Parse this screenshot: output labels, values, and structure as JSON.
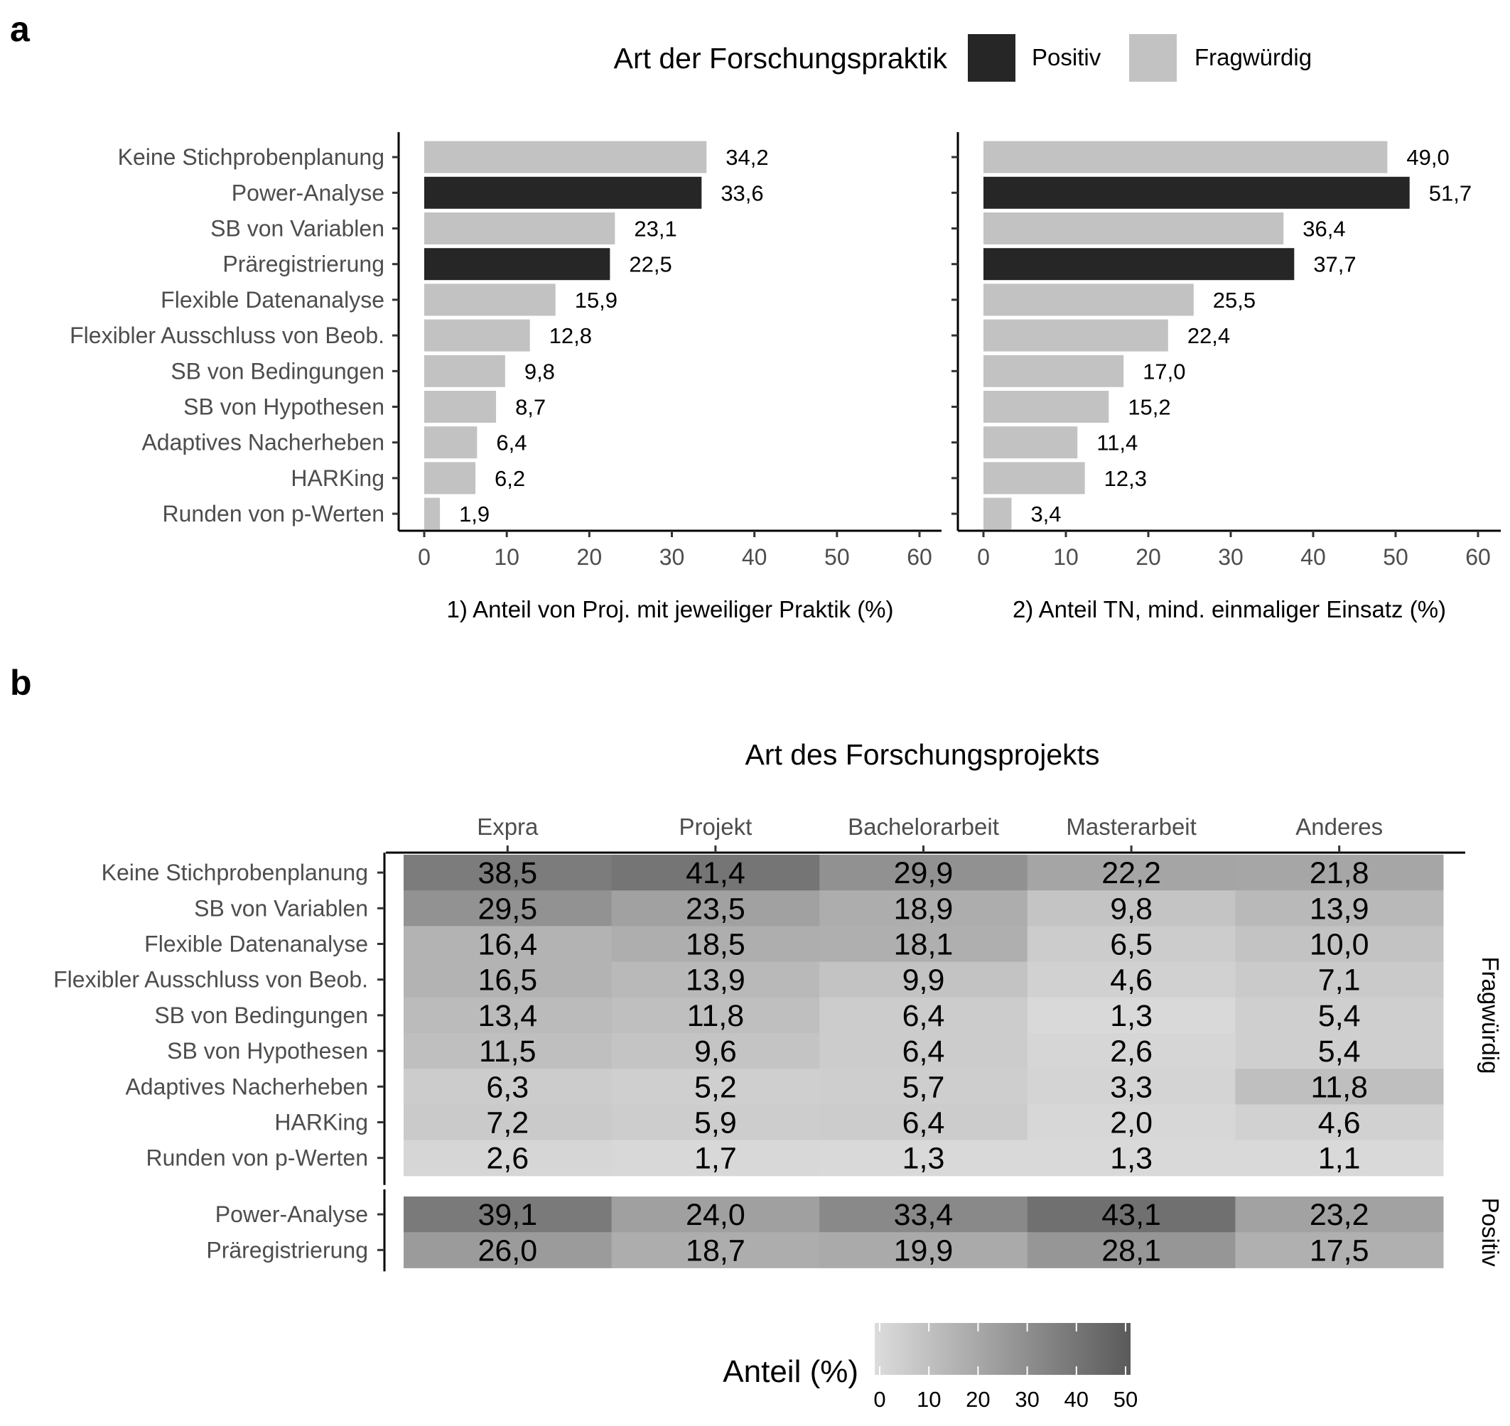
{
  "panel_labels": {
    "a": "a",
    "b": "b"
  },
  "legend": {
    "title": "Art der Forschungspraktik",
    "items": [
      {
        "label": "Positiv",
        "color": "#262626"
      },
      {
        "label": "Fragwürdig",
        "color": "#c2c2c2"
      }
    ]
  },
  "colors": {
    "positive": "#262626",
    "questionable": "#c2c2c2"
  },
  "chart_data": [
    {
      "type": "bar",
      "orientation": "horizontal",
      "categories": [
        "Keine Stichprobenplanung",
        "Power-Analyse",
        "SB von Variablen",
        "Präregistrierung",
        "Flexible Datenanalyse",
        "Flexibler Ausschluss von Beob.",
        "SB von Bedingungen",
        "SB von Hypothesen",
        "Adaptives Nacherheben",
        "HARKing",
        "Runden von p-Werten"
      ],
      "practice_type": [
        "Fragwürdig",
        "Positiv",
        "Fragwürdig",
        "Positiv",
        "Fragwürdig",
        "Fragwürdig",
        "Fragwürdig",
        "Fragwürdig",
        "Fragwürdig",
        "Fragwürdig",
        "Fragwürdig"
      ],
      "values": [
        34.2,
        33.6,
        23.1,
        22.5,
        15.9,
        12.8,
        9.8,
        8.7,
        6.4,
        6.2,
        1.9
      ],
      "value_labels": [
        "34,2",
        "33,6",
        "23,1",
        "22,5",
        "15,9",
        "12,8",
        "9,8",
        "8,7",
        "6,4",
        "6,2",
        "1,9"
      ],
      "xlabel": "1) Anteil von Proj. mit jeweiliger Praktik (%)",
      "xlim": [
        0,
        60
      ],
      "xticks": [
        0,
        10,
        20,
        30,
        40,
        50,
        60
      ]
    },
    {
      "type": "bar",
      "orientation": "horizontal",
      "categories": [
        "Keine Stichprobenplanung",
        "Power-Analyse",
        "SB von Variablen",
        "Präregistrierung",
        "Flexible Datenanalyse",
        "Flexibler Ausschluss von Beob.",
        "SB von Bedingungen",
        "SB von Hypothesen",
        "Adaptives Nacherheben",
        "HARKing",
        "Runden von p-Werten"
      ],
      "practice_type": [
        "Fragwürdig",
        "Positiv",
        "Fragwürdig",
        "Positiv",
        "Fragwürdig",
        "Fragwürdig",
        "Fragwürdig",
        "Fragwürdig",
        "Fragwürdig",
        "Fragwürdig",
        "Fragwürdig"
      ],
      "values": [
        49.0,
        51.7,
        36.4,
        37.7,
        25.5,
        22.4,
        17.0,
        15.2,
        11.4,
        12.3,
        3.4
      ],
      "value_labels": [
        "49,0",
        "51,7",
        "36,4",
        "37,7",
        "25,5",
        "22,4",
        "17,0",
        "15,2",
        "11,4",
        "12,3",
        "3,4"
      ],
      "xlabel": "2) Anteil TN, mind. einmaliger Einsatz (%)",
      "xlim": [
        0,
        60
      ],
      "xticks": [
        0,
        10,
        20,
        30,
        40,
        50,
        60
      ]
    },
    {
      "type": "heatmap",
      "title": "Art des Forschungsprojekts",
      "columns": [
        "Expra",
        "Projekt",
        "Bachelorarbeit",
        "Masterarbeit",
        "Anderes"
      ],
      "groups": [
        {
          "label": "Fragwürdig",
          "rows": [
            "Keine Stichprobenplanung",
            "SB von Variablen",
            "Flexible Datenanalyse",
            "Flexibler Ausschluss von Beob.",
            "SB von Bedingungen",
            "SB von Hypothesen",
            "Adaptives Nacherheben",
            "HARKing",
            "Runden von p-Werten"
          ],
          "values": [
            [
              38.5,
              41.4,
              29.9,
              22.2,
              21.8
            ],
            [
              29.5,
              23.5,
              18.9,
              9.8,
              13.9
            ],
            [
              16.4,
              18.5,
              18.1,
              6.5,
              10.0
            ],
            [
              16.5,
              13.9,
              9.9,
              4.6,
              7.1
            ],
            [
              13.4,
              11.8,
              6.4,
              1.3,
              5.4
            ],
            [
              11.5,
              9.6,
              6.4,
              2.6,
              5.4
            ],
            [
              6.3,
              5.2,
              5.7,
              3.3,
              11.8
            ],
            [
              7.2,
              5.9,
              6.4,
              2.0,
              4.6
            ],
            [
              2.6,
              1.7,
              1.3,
              1.3,
              1.1
            ]
          ],
          "labels": [
            [
              "38,5",
              "41,4",
              "29,9",
              "22,2",
              "21,8"
            ],
            [
              "29,5",
              "23,5",
              "18,9",
              "9,8",
              "13,9"
            ],
            [
              "16,4",
              "18,5",
              "18,1",
              "6,5",
              "10,0"
            ],
            [
              "16,5",
              "13,9",
              "9,9",
              "4,6",
              "7,1"
            ],
            [
              "13,4",
              "11,8",
              "6,4",
              "1,3",
              "5,4"
            ],
            [
              "11,5",
              "9,6",
              "6,4",
              "2,6",
              "5,4"
            ],
            [
              "6,3",
              "5,2",
              "5,7",
              "3,3",
              "11,8"
            ],
            [
              "7,2",
              "5,9",
              "6,4",
              "2,0",
              "4,6"
            ],
            [
              "2,6",
              "1,7",
              "1,3",
              "1,3",
              "1,1"
            ]
          ]
        },
        {
          "label": "Positiv",
          "rows": [
            "Power-Analyse",
            "Präregistrierung"
          ],
          "values": [
            [
              39.1,
              24.0,
              33.4,
              43.1,
              23.2
            ],
            [
              26.0,
              18.7,
              19.9,
              28.1,
              17.5
            ]
          ],
          "labels": [
            [
              "39,1",
              "24,0",
              "33,4",
              "43,1",
              "23,2"
            ],
            [
              "26,0",
              "18,7",
              "19,9",
              "28,1",
              "17,5"
            ]
          ]
        }
      ],
      "colorbar": {
        "title": "Anteil (%)",
        "ticks": [
          0,
          10,
          20,
          30,
          40,
          50
        ],
        "range": [
          0,
          52
        ],
        "low_color": "#dcdcdc",
        "high_color": "#5a5a5a"
      }
    }
  ]
}
